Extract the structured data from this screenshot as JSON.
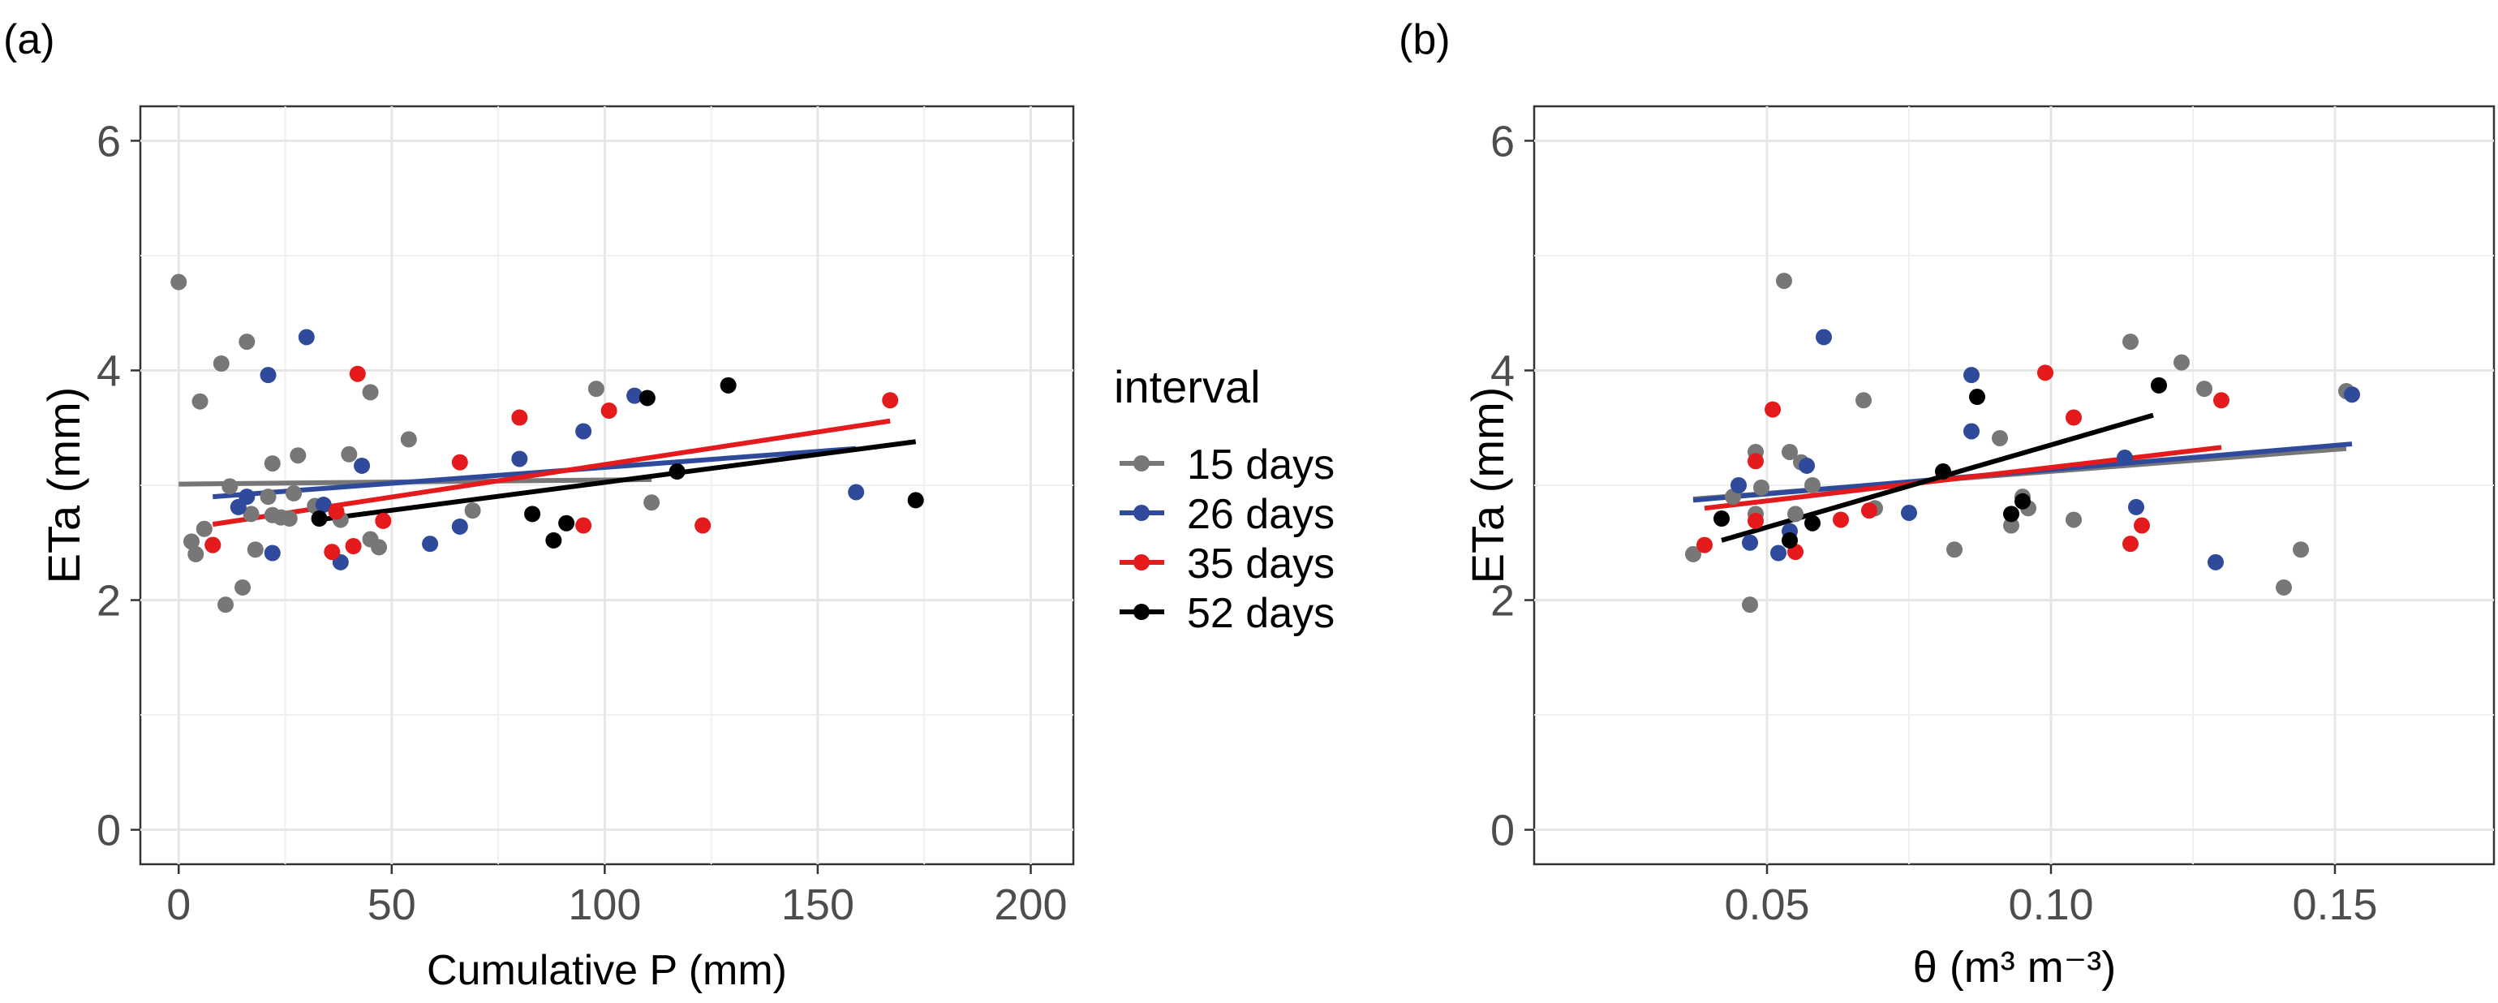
{
  "chart_data": [
    {
      "panel_label": "(a)",
      "type": "scatter",
      "xlabel": "Cumulative P (mm)",
      "ylabel": "ETa (mm)",
      "xlim": [
        -9,
        210
      ],
      "ylim": [
        -0.3,
        6.3
      ],
      "xticks": [
        0,
        50,
        100,
        150,
        200
      ],
      "xtick_labels": [
        "0",
        "50",
        "100",
        "150",
        "200"
      ],
      "yticks": [
        0,
        2,
        4,
        6
      ],
      "ytick_labels": [
        "0",
        "2",
        "4",
        "6"
      ],
      "grid": true,
      "legend_position": "right",
      "series": [
        {
          "name": "15 days",
          "color": "#777777",
          "points": [
            [
              0,
              4.77
            ],
            [
              3,
              2.51
            ],
            [
              4,
              2.4
            ],
            [
              5,
              3.73
            ],
            [
              6,
              2.62
            ],
            [
              10,
              4.06
            ],
            [
              11,
              1.96
            ],
            [
              12,
              2.99
            ],
            [
              15,
              2.11
            ],
            [
              16,
              4.25
            ],
            [
              17,
              2.75
            ],
            [
              18,
              2.44
            ],
            [
              21,
              2.9
            ],
            [
              22,
              3.19
            ],
            [
              22,
              2.74
            ],
            [
              24,
              2.72
            ],
            [
              26,
              2.71
            ],
            [
              27,
              2.93
            ],
            [
              28,
              3.26
            ],
            [
              32,
              2.82
            ],
            [
              38,
              2.7
            ],
            [
              40,
              3.27
            ],
            [
              45,
              2.53
            ],
            [
              45,
              3.81
            ],
            [
              47,
              2.46
            ],
            [
              54,
              3.4
            ],
            [
              69,
              2.78
            ],
            [
              98,
              3.84
            ],
            [
              111,
              2.85
            ]
          ],
          "trend": {
            "x": [
              0,
              111
            ],
            "y": [
              3.01,
              3.05
            ]
          }
        },
        {
          "name": "26 days",
          "color": "#2f4a9a",
          "points": [
            [
              8,
              2.48
            ],
            [
              14,
              2.81
            ],
            [
              16,
              2.9
            ],
            [
              21,
              3.96
            ],
            [
              22,
              2.41
            ],
            [
              30,
              4.29
            ],
            [
              34,
              2.83
            ],
            [
              43,
              3.17
            ],
            [
              38,
              2.33
            ],
            [
              59,
              2.49
            ],
            [
              66,
              2.64
            ],
            [
              80,
              3.23
            ],
            [
              95,
              3.47
            ],
            [
              107,
              3.78
            ],
            [
              159,
              2.94
            ]
          ],
          "trend": {
            "x": [
              8,
              159
            ],
            "y": [
              2.9,
              3.32
            ]
          }
        },
        {
          "name": "35 days",
          "color": "#e41a1c",
          "points": [
            [
              8,
              2.48
            ],
            [
              36,
              2.42
            ],
            [
              37,
              2.77
            ],
            [
              41,
              2.47
            ],
            [
              42,
              3.97
            ],
            [
              48,
              2.69
            ],
            [
              66,
              3.2
            ],
            [
              80,
              3.59
            ],
            [
              95,
              2.65
            ],
            [
              101,
              3.65
            ],
            [
              123,
              2.65
            ],
            [
              167,
              3.74
            ]
          ],
          "trend": {
            "x": [
              8,
              167
            ],
            "y": [
              2.66,
              3.56
            ]
          }
        },
        {
          "name": "52 days",
          "color": "#000000",
          "points": [
            [
              33,
              2.71
            ],
            [
              83,
              2.75
            ],
            [
              88,
              2.52
            ],
            [
              91,
              2.67
            ],
            [
              110,
              3.76
            ],
            [
              117,
              3.12
            ],
            [
              129,
              3.87
            ],
            [
              173,
              2.87
            ]
          ],
          "trend": {
            "x": [
              33,
              173
            ],
            "y": [
              2.7,
              3.38
            ]
          }
        }
      ]
    },
    {
      "panel_label": "(b)",
      "type": "scatter",
      "xlabel": "θ (m³ m⁻³)",
      "ylabel": "ETa (mm)",
      "xlim": [
        0.009,
        0.178
      ],
      "ylim": [
        -0.3,
        6.3
      ],
      "xticks": [
        0.05,
        0.1,
        0.15
      ],
      "xtick_labels": [
        "0.05",
        "0.10",
        "0.15"
      ],
      "yticks": [
        0,
        2,
        4,
        6
      ],
      "ytick_labels": [
        "0",
        "2",
        "4",
        "6"
      ],
      "grid": true,
      "series": [
        {
          "name": "15 days",
          "color": "#777777",
          "points": [
            [
              0.037,
              2.4
            ],
            [
              0.044,
              2.9
            ],
            [
              0.047,
              1.96
            ],
            [
              0.048,
              3.29
            ],
            [
              0.048,
              2.75
            ],
            [
              0.049,
              2.98
            ],
            [
              0.053,
              4.78
            ],
            [
              0.054,
              3.29
            ],
            [
              0.055,
              2.75
            ],
            [
              0.056,
              3.2
            ],
            [
              0.058,
              3.0
            ],
            [
              0.067,
              3.74
            ],
            [
              0.069,
              2.8
            ],
            [
              0.083,
              2.44
            ],
            [
              0.091,
              3.41
            ],
            [
              0.093,
              2.65
            ],
            [
              0.095,
              2.9
            ],
            [
              0.096,
              2.8
            ],
            [
              0.104,
              2.7
            ],
            [
              0.114,
              4.25
            ],
            [
              0.123,
              4.07
            ],
            [
              0.127,
              3.84
            ],
            [
              0.141,
              2.11
            ],
            [
              0.144,
              2.44
            ],
            [
              0.152,
              3.82
            ]
          ],
          "trend": {
            "x": [
              0.037,
              0.152
            ],
            "y": [
              2.88,
              3.32
            ]
          }
        },
        {
          "name": "26 days",
          "color": "#2f4a9a",
          "points": [
            [
              0.045,
              3.0
            ],
            [
              0.047,
              2.5
            ],
            [
              0.052,
              2.41
            ],
            [
              0.054,
              2.6
            ],
            [
              0.057,
              3.17
            ],
            [
              0.06,
              4.29
            ],
            [
              0.075,
              2.76
            ],
            [
              0.086,
              3.96
            ],
            [
              0.086,
              3.47
            ],
            [
              0.113,
              3.24
            ],
            [
              0.115,
              2.81
            ],
            [
              0.129,
              2.33
            ],
            [
              0.153,
              3.79
            ]
          ],
          "trend": {
            "x": [
              0.037,
              0.153
            ],
            "y": [
              2.87,
              3.36
            ]
          }
        },
        {
          "name": "35 days",
          "color": "#e41a1c",
          "points": [
            [
              0.039,
              2.48
            ],
            [
              0.048,
              3.21
            ],
            [
              0.048,
              2.69
            ],
            [
              0.051,
              3.66
            ],
            [
              0.055,
              2.42
            ],
            [
              0.063,
              2.7
            ],
            [
              0.068,
              2.78
            ],
            [
              0.099,
              3.98
            ],
            [
              0.104,
              3.59
            ],
            [
              0.114,
              2.49
            ],
            [
              0.116,
              2.65
            ],
            [
              0.13,
              3.74
            ]
          ],
          "trend": {
            "x": [
              0.039,
              0.13
            ],
            "y": [
              2.8,
              3.33
            ]
          }
        },
        {
          "name": "52 days",
          "color": "#000000",
          "points": [
            [
              0.042,
              2.71
            ],
            [
              0.054,
              2.52
            ],
            [
              0.058,
              2.67
            ],
            [
              0.081,
              3.12
            ],
            [
              0.087,
              3.77
            ],
            [
              0.093,
              2.75
            ],
            [
              0.095,
              2.86
            ],
            [
              0.119,
              3.87
            ]
          ],
          "trend": {
            "x": [
              0.042,
              0.118
            ],
            "y": [
              2.52,
              3.61
            ]
          }
        }
      ]
    }
  ],
  "legend": {
    "title": "interval",
    "items": [
      "15 days",
      "26 days",
      "35 days",
      "52 days"
    ]
  }
}
